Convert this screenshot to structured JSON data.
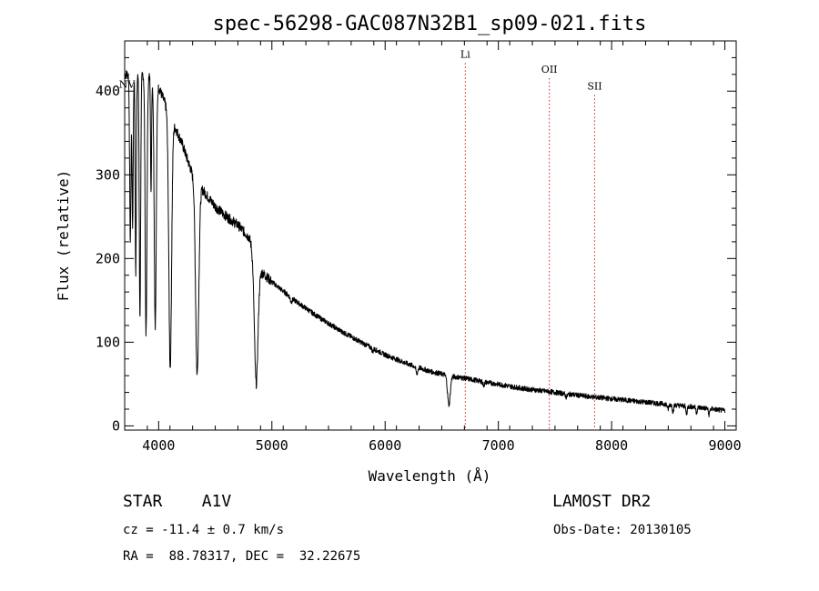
{
  "chart_data": {
    "type": "line",
    "title": "spec-56298-GAC087N32B1_sp09-021.fits",
    "xlabel": "Wavelength (Å)",
    "ylabel": "Flux (relative)",
    "xlim": [
      3700,
      9100
    ],
    "ylim": [
      -5,
      460
    ],
    "xticks": [
      4000,
      5000,
      6000,
      7000,
      8000,
      9000
    ],
    "yticks": [
      0,
      100,
      200,
      300,
      400
    ],
    "continuum": [
      [
        3700,
        420
      ],
      [
        3900,
        420
      ],
      [
        4000,
        405
      ],
      [
        4100,
        370
      ],
      [
        4200,
        340
      ],
      [
        4300,
        300
      ],
      [
        4400,
        280
      ],
      [
        4500,
        262
      ],
      [
        4600,
        250
      ],
      [
        4700,
        240
      ],
      [
        4800,
        225
      ],
      [
        4900,
        185
      ],
      [
        5000,
        172
      ],
      [
        5200,
        150
      ],
      [
        5400,
        131
      ],
      [
        5600,
        114
      ],
      [
        5800,
        99
      ],
      [
        6000,
        85
      ],
      [
        6200,
        74
      ],
      [
        6400,
        65
      ],
      [
        6600,
        59
      ],
      [
        6700,
        57
      ],
      [
        6900,
        52
      ],
      [
        7200,
        45
      ],
      [
        7500,
        40
      ],
      [
        7800,
        35
      ],
      [
        8100,
        31
      ],
      [
        8400,
        27
      ],
      [
        8700,
        23
      ],
      [
        8900,
        20
      ],
      [
        9000,
        18
      ]
    ],
    "absorption_lines": [
      [
        3750,
        200,
        6
      ],
      [
        3770,
        180,
        5
      ],
      [
        3798,
        240,
        5
      ],
      [
        3835,
        290,
        6
      ],
      [
        3889,
        310,
        8
      ],
      [
        3933,
        140,
        4
      ],
      [
        3970,
        290,
        9
      ],
      [
        4102,
        300,
        12
      ],
      [
        4340,
        230,
        14
      ],
      [
        4861,
        150,
        16
      ],
      [
        5170,
        5,
        8
      ],
      [
        5890,
        4,
        6
      ],
      [
        6280,
        8,
        8
      ],
      [
        6563,
        35,
        12
      ],
      [
        6870,
        4,
        8
      ],
      [
        7600,
        4,
        8
      ],
      [
        8498,
        6,
        6
      ],
      [
        8542,
        8,
        6
      ],
      [
        8662,
        9,
        6
      ],
      [
        8750,
        6,
        6
      ],
      [
        8860,
        7,
        6
      ]
    ],
    "noise": 3,
    "line_markers": [
      {
        "label": "NV",
        "x": 3720,
        "label_y": 404
      },
      {
        "label": "Li",
        "x": 6708,
        "label_y": 440
      },
      {
        "label": "OII",
        "x": 7450,
        "label_y": 422
      },
      {
        "label": "SII",
        "x": 7850,
        "label_y": 402
      }
    ],
    "marker_color": "#d22020",
    "line_color": "#000000",
    "grid": false
  },
  "info": {
    "object": "STAR    A1V",
    "survey": "LAMOST DR2",
    "cz": "cz = -11.4 ± 0.7 km/s",
    "obs_date": "Obs-Date: 20130105",
    "coords": "RA =  88.78317, DEC =  32.22675"
  }
}
